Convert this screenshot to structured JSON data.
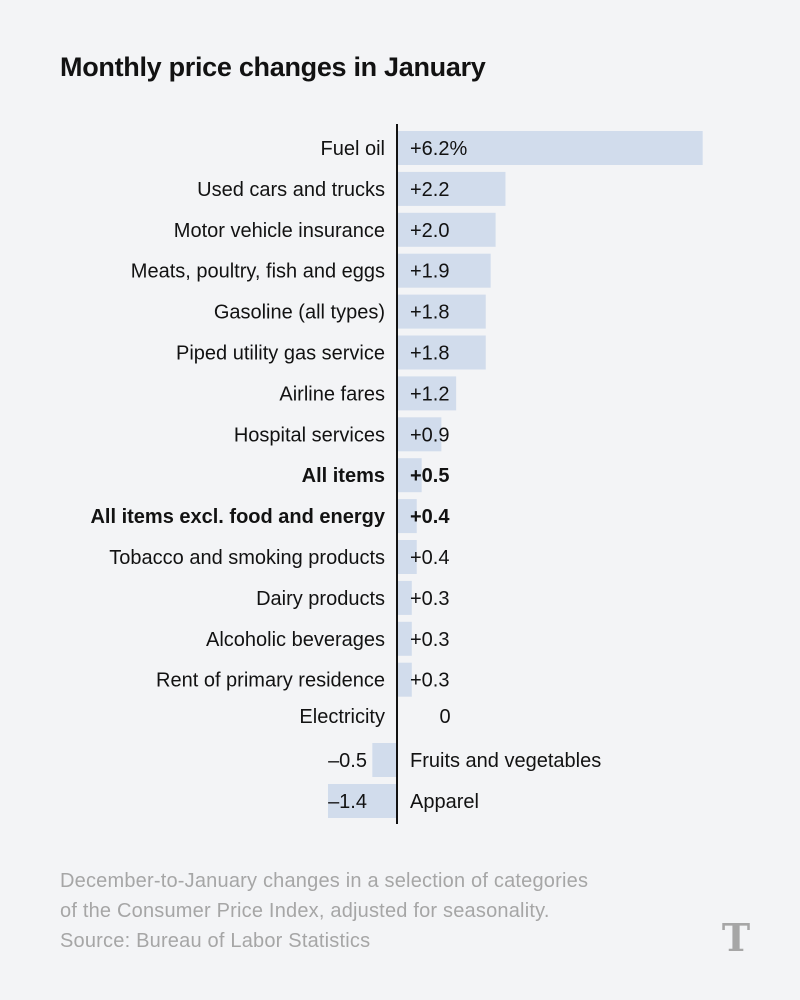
{
  "title": "Monthly price changes in January",
  "chart_data": {
    "type": "bar",
    "orientation": "horizontal",
    "title": "Monthly price changes in January",
    "unit": "%",
    "xlim": [
      -1.9,
      8.1
    ],
    "categories": [
      "Fuel oil",
      "Used cars and trucks",
      "Motor vehicle insurance",
      "Meats, poultry, fish and eggs",
      "Gasoline (all types)",
      "Piped utility gas service",
      "Airline fares",
      "Hospital services",
      "All items",
      "All items excl. food and energy",
      "Tobacco and smoking products",
      "Dairy products",
      "Alcoholic beverages",
      "Rent of primary residence",
      "Electricity",
      "Fruits and vegetables",
      "Apparel"
    ],
    "values": [
      6.2,
      2.2,
      2.0,
      1.9,
      1.8,
      1.8,
      1.2,
      0.9,
      0.5,
      0.4,
      0.4,
      0.3,
      0.3,
      0.3,
      0,
      -0.5,
      -1.4
    ],
    "value_labels": [
      "+6.2%",
      "+2.2",
      "+2.0",
      "+1.9",
      "+1.8",
      "+1.8",
      "+1.2",
      "+0.9",
      "+0.5",
      "+0.4",
      "+0.4",
      "+0.3",
      "+0.3",
      "+0.3",
      "0",
      "–0.5",
      "–1.4"
    ],
    "bold": [
      false,
      false,
      false,
      false,
      false,
      false,
      false,
      false,
      true,
      true,
      false,
      false,
      false,
      false,
      false,
      false,
      false
    ],
    "bar_color": "#d1dcec",
    "axis_color": "#121212"
  },
  "footer": {
    "line1": "December-to-January changes in a selection of categories",
    "line2": "of the Consumer Price Index, adjusted for seasonality.",
    "line3": "Source: Bureau of Labor Statistics"
  },
  "logo": {
    "icon": "nyt-t-logo-icon",
    "text": "T",
    "color": "#a6a6a6"
  }
}
